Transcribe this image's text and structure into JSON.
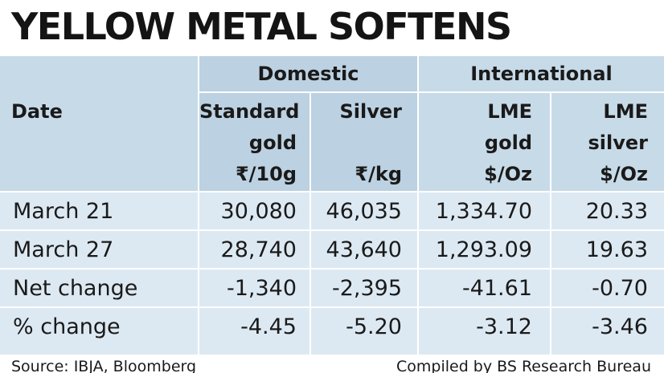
{
  "title": "YELLOW METAL SOFTENS",
  "groups": {
    "domestic": "Domestic",
    "international": "International"
  },
  "columns": {
    "date": "Date",
    "std_gold": [
      "Standard",
      "gold",
      "₹/10g"
    ],
    "silver": [
      "Silver",
      "",
      "₹/kg"
    ],
    "lme_gold": [
      "LME",
      "gold",
      "$/Oz"
    ],
    "lme_silver": [
      "LME",
      "silver",
      "$/Oz"
    ]
  },
  "rows": [
    {
      "label": "March 21",
      "std_gold": "30,080",
      "silver": "46,035",
      "lme_gold": "1,334.70",
      "lme_silver": "20.33"
    },
    {
      "label": "March 27",
      "std_gold": "28,740",
      "silver": "43,640",
      "lme_gold": "1,293.09",
      "lme_silver": "19.63"
    },
    {
      "label": "Net change",
      "std_gold": "-1,340",
      "silver": "-2,395",
      "lme_gold": "-41.61",
      "lme_silver": "-0.70"
    },
    {
      "label": "% change",
      "std_gold": "-4.45",
      "silver": "-5.20",
      "lme_gold": "-3.12",
      "lme_silver": "-3.46"
    }
  ],
  "footer": {
    "source": "Source: IBJA, Bloomberg",
    "credit": "Compiled by BS Research Bureau"
  },
  "colors": {
    "table_bg": "#dde9f2",
    "header_bg": "#c7dae8",
    "domestic_bg": "#bcd1e1",
    "rule": "#ffffff"
  }
}
